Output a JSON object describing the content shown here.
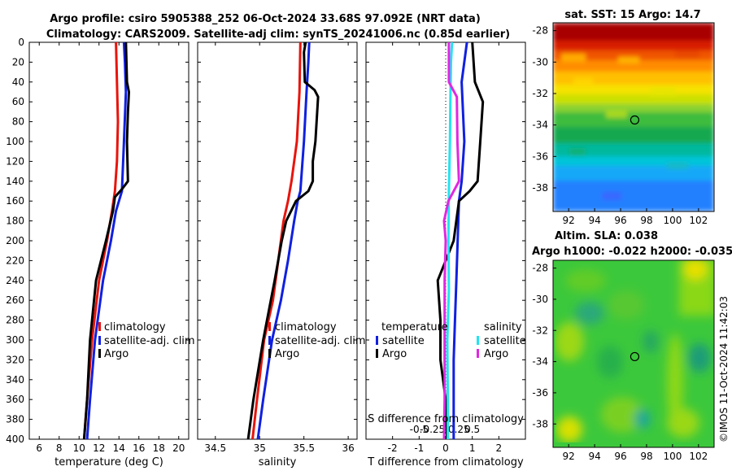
{
  "header": {
    "title_line1": "Argo profile: csiro 5905388_252 06-Oct-2024 33.68S 97.092E (NRT data)",
    "title_line2": "Climatology: CARS2009. Satellite-adj clim: synTS_20241006.nc (0.85d earlier)"
  },
  "side_stamp": "©IMOS 11-Oct-2024 11:42:03",
  "colors": {
    "argo": "#000000",
    "climatology": "#e8140c",
    "satellite": "#1020e0",
    "sal_satellite": "#22e4f0",
    "sal_argo": "#e028e0"
  },
  "chart_data": [
    {
      "type": "line",
      "id": "temperature",
      "xlabel": "temperature (deg C)",
      "xlim": [
        5,
        21
      ],
      "xticks": [
        6,
        8,
        10,
        12,
        14,
        16,
        18,
        20
      ],
      "ylim": [
        0,
        400
      ],
      "yticks": [
        0,
        20,
        40,
        60,
        80,
        100,
        120,
        140,
        160,
        180,
        200,
        220,
        240,
        260,
        280,
        300,
        320,
        340,
        360,
        380,
        400
      ],
      "legend": [
        "climatology",
        "satellite-adj. clim",
        "Argo"
      ],
      "series": [
        {
          "name": "climatology",
          "color": "#e8140c",
          "depth": [
            0,
            40,
            80,
            120,
            150,
            170,
            200,
            240,
            300,
            360,
            400
          ],
          "values": [
            13.7,
            13.8,
            13.9,
            13.8,
            13.6,
            13.3,
            12.8,
            12.0,
            11.3,
            10.8,
            10.5
          ]
        },
        {
          "name": "satellite-adj. clim",
          "color": "#1020e0",
          "depth": [
            0,
            20,
            50,
            100,
            150,
            170,
            200,
            240,
            300,
            360,
            400
          ],
          "values": [
            14.5,
            14.6,
            14.7,
            14.5,
            14.3,
            13.7,
            13.2,
            12.4,
            11.6,
            11.1,
            10.8
          ]
        },
        {
          "name": "Argo",
          "color": "#000000",
          "depth": [
            0,
            40,
            50,
            70,
            100,
            140,
            148,
            156,
            170,
            200,
            240,
            300,
            360,
            400
          ],
          "values": [
            14.7,
            14.8,
            15.0,
            14.9,
            14.8,
            14.9,
            14.3,
            13.6,
            13.4,
            12.7,
            11.7,
            11.1,
            10.8,
            10.5
          ]
        }
      ]
    },
    {
      "type": "line",
      "id": "salinity",
      "xlabel": "salinity",
      "xlim": [
        34.3,
        36.1
      ],
      "xticks": [
        34.5,
        35,
        35.5,
        36
      ],
      "ylim": [
        0,
        400
      ],
      "legend": [
        "climatology",
        "satellite-adj. clim",
        "Argo"
      ],
      "series": [
        {
          "name": "climatology",
          "color": "#e8140c",
          "depth": [
            0,
            50,
            100,
            140,
            160,
            180,
            220,
            260,
            300,
            360,
            400
          ],
          "values": [
            35.46,
            35.45,
            35.42,
            35.36,
            35.32,
            35.27,
            35.21,
            35.15,
            35.05,
            34.97,
            34.92
          ]
        },
        {
          "name": "satellite-adj. clim",
          "color": "#1020e0",
          "depth": [
            0,
            20,
            50,
            100,
            150,
            160,
            180,
            220,
            260,
            300,
            360,
            400
          ],
          "values": [
            35.56,
            35.55,
            35.53,
            35.5,
            35.46,
            35.43,
            35.39,
            35.32,
            35.24,
            35.14,
            35.04,
            34.98
          ]
        },
        {
          "name": "Argo",
          "color": "#000000",
          "depth": [
            0,
            10,
            40,
            48,
            55,
            100,
            120,
            140,
            150,
            160,
            180,
            200,
            240,
            300,
            360,
            400
          ],
          "values": [
            35.52,
            35.5,
            35.51,
            35.62,
            35.66,
            35.63,
            35.6,
            35.6,
            35.55,
            35.41,
            35.3,
            35.25,
            35.17,
            35.04,
            34.93,
            34.87
          ]
        }
      ]
    },
    {
      "type": "line",
      "id": "difference",
      "xlabel": "T difference from climatology",
      "xlabel_top": "S difference from climatology",
      "xlim": [
        -3,
        3
      ],
      "xticks": [
        -2,
        -1,
        0,
        1,
        2
      ],
      "xticks_top": [
        -0.5,
        -0.25,
        0,
        0.25,
        0.5
      ],
      "xticks_top_labels": [
        "-0.5",
        "-0.25",
        "0",
        "0.25",
        "0.5"
      ],
      "ylim": [
        0,
        400
      ],
      "legend_temperature_title": "temperature",
      "legend_temperature": [
        "satellite",
        "Argo"
      ],
      "legend_salinity_title": "salinity",
      "legend_salinity": [
        "satellite",
        "Argo"
      ],
      "series": [
        {
          "name": "T satellite",
          "color": "#1020e0",
          "depth": [
            0,
            40,
            100,
            140,
            160,
            200,
            240,
            280,
            320,
            360,
            400
          ],
          "values": [
            0.8,
            0.6,
            0.7,
            0.6,
            0.5,
            0.45,
            0.4,
            0.35,
            0.3,
            0.3,
            0.3
          ]
        },
        {
          "name": "T Argo",
          "color": "#000000",
          "depth": [
            0,
            40,
            60,
            100,
            140,
            150,
            160,
            200,
            240,
            280,
            320,
            360,
            400
          ],
          "values": [
            1.0,
            1.1,
            1.4,
            1.3,
            1.2,
            0.9,
            0.5,
            0.3,
            -0.3,
            -0.2,
            -0.2,
            0,
            0.05
          ]
        },
        {
          "name": "S satellite",
          "color": "#22e4f0",
          "depth": [
            0,
            20,
            50,
            100,
            150,
            200,
            250,
            300,
            360,
            400
          ],
          "values": [
            0.12,
            0.1,
            0.09,
            0.08,
            0.06,
            0.05,
            0.06,
            0.03,
            0.04,
            0.04
          ]
        },
        {
          "name": "S Argo",
          "color": "#e028e0",
          "depth": [
            0,
            40,
            55,
            100,
            140,
            160,
            180,
            200,
            240,
            280,
            300,
            360,
            400
          ],
          "values": [
            0.06,
            0.06,
            0.21,
            0.22,
            0.25,
            0.05,
            -0.03,
            0,
            -0.02,
            -0.02,
            -0.02,
            -0.02,
            -0.03
          ]
        }
      ]
    },
    {
      "type": "heatmap",
      "id": "sst-map",
      "title": "sat. SST: 15 Argo: 14.7",
      "xlim": [
        90.8,
        103.2
      ],
      "ylim": [
        -39.5,
        -27.5
      ],
      "xticks": [
        92,
        94,
        96,
        98,
        100,
        102
      ],
      "yticks": [
        -28,
        -30,
        -32,
        -34,
        -36,
        -38
      ],
      "marker": {
        "lon": 97.09,
        "lat": -33.68
      }
    },
    {
      "type": "heatmap",
      "id": "sla-map",
      "title_line1": "Altim. SLA: 0.038",
      "title_line2": "Argo h1000: -0.022 h2000: -0.035",
      "xlim": [
        90.8,
        103.2
      ],
      "ylim": [
        -39.5,
        -27.5
      ],
      "xticks": [
        92,
        94,
        96,
        98,
        100,
        102
      ],
      "yticks": [
        -28,
        -30,
        -32,
        -34,
        -36,
        -38
      ],
      "marker": {
        "lon": 97.09,
        "lat": -33.68
      }
    }
  ]
}
